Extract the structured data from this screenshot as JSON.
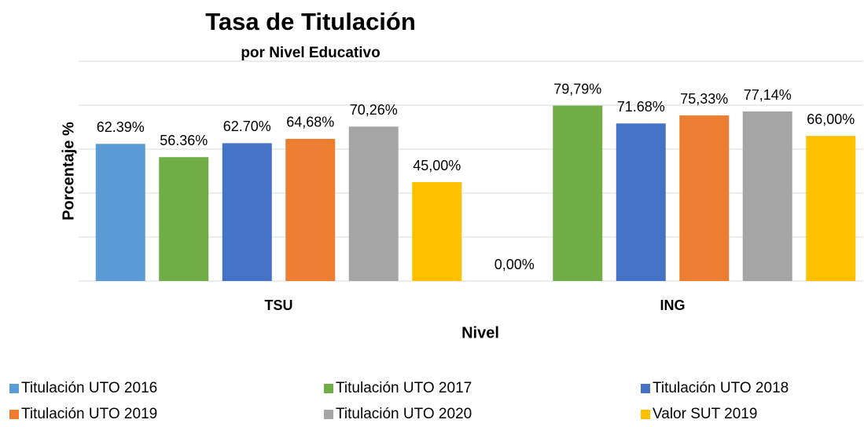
{
  "chart_data": {
    "type": "bar",
    "title": "Tasa de Titulación",
    "subtitle": "por Nivel Educativo",
    "x_label": "Nivel",
    "y_label": "Porcentaje %",
    "categories": [
      "TSU",
      "ING"
    ],
    "series": [
      {
        "name": "Titulación UTO 2016",
        "color": "#5b9bd5",
        "values": [
          62.39,
          0
        ],
        "value_labels": [
          "62.39%",
          "0,00%"
        ]
      },
      {
        "name": "Titulación UTO 2017",
        "color": "#70ad47",
        "values": [
          56.36,
          79.79
        ],
        "value_labels": [
          "56.36%",
          "79,79%"
        ]
      },
      {
        "name": "Titulación UTO 2018",
        "color": "#4472c4",
        "values": [
          62.7,
          71.68
        ],
        "value_labels": [
          "62.70%",
          "71.68%"
        ]
      },
      {
        "name": "Titulación UTO 2019",
        "color": "#ed7d31",
        "values": [
          64.68,
          75.33
        ],
        "value_labels": [
          "64,68%",
          "75,33%"
        ]
      },
      {
        "name": "Titulación UTO 2020",
        "color": "#a5a5a5",
        "values": [
          70.26,
          77.14
        ],
        "value_labels": [
          "70,26%",
          "77,14%"
        ]
      },
      {
        "name": "Valor SUT 2019",
        "color": "#ffc000",
        "values": [
          45.0,
          66.0
        ],
        "value_labels": [
          "45,00%",
          "66,00%"
        ]
      }
    ],
    "ylim": [
      0,
      100
    ],
    "yticks": [
      0,
      20,
      40,
      60,
      80,
      100
    ],
    "grid": true,
    "legend": "bottom"
  }
}
